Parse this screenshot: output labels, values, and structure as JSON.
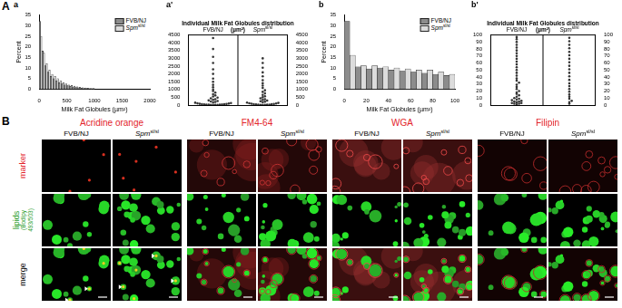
{
  "figure_labels": [
    "A",
    "B"
  ],
  "chart_data": [
    {
      "panel": "a",
      "type": "histogram",
      "x_label": "Milk Fat Globules (µm²)",
      "y_label": "Percent",
      "bins": [
        0,
        50,
        100,
        150,
        200,
        250,
        300,
        350,
        400,
        450,
        500,
        550,
        600,
        650,
        700,
        750,
        800,
        850,
        900,
        950,
        1000
      ],
      "series": [
        {
          "name": "FVB/NJ",
          "color": "#8c8c8c",
          "values": [
            32,
            18,
            11,
            8,
            6,
            5,
            4,
            3,
            2.5,
            2,
            1.6,
            1.3,
            1,
            0.8,
            0.7,
            0.5,
            0.4,
            0.3,
            0.2,
            0.2
          ]
        },
        {
          "name": "Spm",
          "name_superscript": "sl/sl",
          "color": "#dcdcdc",
          "values": [
            25,
            17,
            12,
            9,
            7,
            6,
            5,
            4,
            3,
            2.5,
            2,
            1.7,
            1.4,
            1.1,
            0.9,
            0.7,
            0.6,
            0.5,
            0.4,
            0.3
          ]
        }
      ],
      "xlim": [
        0,
        2000
      ],
      "xticks": [
        0,
        500,
        1000,
        1500,
        2000
      ],
      "ylim": [
        0,
        35
      ],
      "yticks": [
        0,
        5,
        10,
        15,
        20,
        25,
        30,
        35
      ],
      "grid": false,
      "legend": "top-right"
    },
    {
      "panel": "a'",
      "type": "strip",
      "title": "Individual Milk Fat Globules distribution (µm²)",
      "series": [
        {
          "name": "FVB/NJ",
          "color": "#333333",
          "values": [
            5,
            8,
            12,
            15,
            20,
            25,
            30,
            35,
            40,
            50,
            60,
            70,
            80,
            95,
            110,
            130,
            150,
            170,
            200,
            230,
            260,
            300,
            340,
            380,
            430,
            480,
            550,
            620,
            700,
            800,
            900,
            1000,
            1150,
            1300,
            1500,
            1700,
            2000,
            2300,
            2700,
            3100,
            3600,
            4300
          ]
        },
        {
          "name": "Spm",
          "name_superscript": "sl/sl",
          "color": "#333333",
          "values": [
            5,
            10,
            15,
            20,
            25,
            30,
            40,
            50,
            60,
            70,
            85,
            100,
            120,
            140,
            160,
            190,
            220,
            250,
            290,
            330,
            380,
            440,
            500,
            570,
            650,
            750,
            850,
            950,
            1100,
            1250,
            1400,
            1600,
            1850,
            2100,
            2400,
            2700,
            3000
          ]
        }
      ],
      "ylim": [
        0,
        4500
      ],
      "yticks": [
        0,
        500,
        1000,
        1500,
        2000,
        2500,
        3000,
        3500,
        4000,
        4500
      ],
      "y2lim": [
        0,
        4500
      ],
      "y2ticks": [
        0,
        500,
        1000,
        1500,
        2000,
        2500,
        3000,
        3500,
        4000,
        4500
      ],
      "grid": false
    },
    {
      "panel": "b",
      "type": "histogram",
      "x_label": "Milk Fat Globules (µm²)",
      "y_label": "Percent",
      "bins": [
        0,
        10,
        20,
        30,
        40,
        50,
        60,
        70,
        80,
        90,
        100
      ],
      "series": [
        {
          "name": "FVB/NJ",
          "color": "#8c8c8c",
          "values": [
            32,
            10.5,
            9.5,
            10,
            9,
            8.5,
            8,
            7.5,
            7,
            6.5
          ]
        },
        {
          "name": "Spm",
          "name_superscript": "sl/sl",
          "color": "#dcdcdc",
          "values": [
            16,
            11,
            11,
            10.5,
            10,
            9.5,
            9,
            9,
            8,
            7
          ]
        }
      ],
      "xlim": [
        0,
        100
      ],
      "xticks": [
        0,
        20,
        40,
        60,
        80,
        100
      ],
      "ylim": [
        0,
        35
      ],
      "yticks": [
        0,
        5,
        10,
        15,
        20,
        25,
        30,
        35
      ],
      "grid": false,
      "legend": "top-right"
    },
    {
      "panel": "b'",
      "type": "strip",
      "title": "Individual Milk Fat Globules distribution (µm²)",
      "series": [
        {
          "name": "FVB/NJ",
          "color": "#333333",
          "values": [
            1,
            2,
            2,
            3,
            3,
            4,
            5,
            5,
            6,
            7,
            8,
            9,
            10,
            12,
            14,
            16,
            18,
            20,
            23,
            26,
            29,
            32,
            35,
            38,
            42,
            46,
            50,
            54,
            58,
            62,
            66,
            70,
            74,
            78,
            82,
            86,
            90,
            94,
            97
          ]
        },
        {
          "name": "Spm",
          "name_superscript": "sl/sl",
          "color": "#333333",
          "values": [
            2,
            4,
            6,
            9,
            12,
            15,
            19,
            23,
            27,
            31,
            36,
            41,
            46,
            51,
            56,
            61,
            66,
            71,
            76,
            81,
            86,
            91,
            96
          ]
        }
      ],
      "ylim": [
        0,
        100
      ],
      "yticks": [
        0,
        10,
        20,
        30,
        40,
        50,
        60,
        70,
        80,
        90,
        100
      ],
      "y2lim": [
        0,
        100
      ],
      "y2ticks": [
        0,
        10,
        20,
        30,
        40,
        50,
        60,
        70,
        80,
        90,
        100
      ],
      "grid": false
    }
  ],
  "micrographs": {
    "stains": {
      "color": "#e3242b",
      "names": [
        "Acridine orange",
        "FM4-64",
        "WGA",
        "Filipin"
      ]
    },
    "strains": [
      {
        "name": "FVB/NJ"
      },
      {
        "name": "Spm",
        "name_superscript": "sl/sl"
      }
    ],
    "rows": [
      {
        "label": "marker",
        "color": "#e3242b"
      },
      {
        "label": "lipids",
        "sublabel": "(Bodipy 493/503)",
        "color": "#2a9d2a"
      },
      {
        "label": "merge",
        "color": "#000000"
      }
    ]
  }
}
